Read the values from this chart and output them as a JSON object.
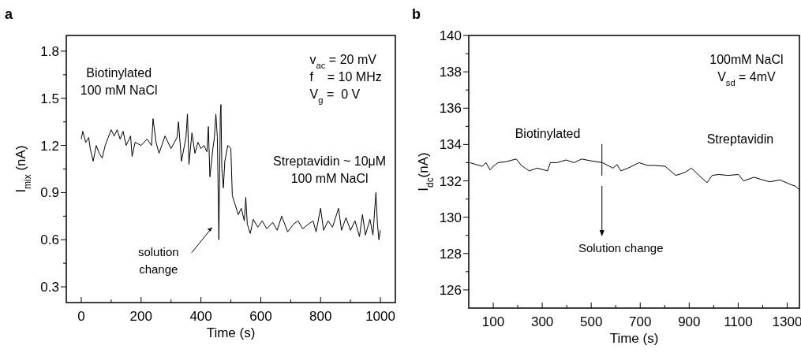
{
  "chart_data": [
    {
      "type": "line",
      "title": "a",
      "xlabel": "Time (s)",
      "ylabel": "I$_{mix}$ (nA)",
      "xlim": [
        -50,
        1050
      ],
      "ylim": [
        0.2,
        1.9
      ],
      "xticks": [
        0,
        {
          "value": 100,
          "label": null
        },
        200,
        {
          "value": 300,
          "label": null
        },
        400,
        {
          "value": 500,
          "label": null
        },
        600,
        {
          "value": 700,
          "label": null
        },
        800,
        {
          "value": 900,
          "label": null
        },
        1000
      ],
      "yticks": [
        0.3,
        {
          "value": 0.45,
          "label": null
        },
        0.6,
        {
          "value": 0.75,
          "label": null
        },
        0.9,
        {
          "value": 1.05,
          "label": null
        },
        1.2,
        {
          "value": 1.35,
          "label": null
        },
        1.5,
        {
          "value": 1.65,
          "label": null
        },
        1.8
      ],
      "annotations": [
        "Biotinylated\n100 mM NaCl",
        "v$_{ac}$ = 20 mV\nf    = 10 MHz\nV$_{g}$ =  0 V",
        "Streptavidin ~ 10μM\n100 mM NaCl",
        "solution\nchange"
      ],
      "series": [
        {
          "color": "#000000",
          "x": [
            0,
            5,
            15,
            25,
            30,
            40,
            50,
            60,
            70,
            80,
            90,
            100,
            110,
            120,
            130,
            140,
            150,
            165,
            170,
            180,
            200,
            220,
            235,
            240,
            250,
            260,
            280,
            300,
            320,
            325,
            335,
            350,
            355,
            360,
            370,
            380,
            390,
            400,
            410,
            420,
            425,
            430,
            440,
            445,
            450,
            455,
            460,
            465,
            467,
            470,
            475,
            480,
            490,
            500,
            505,
            515,
            525,
            535,
            545,
            550,
            555,
            565,
            575,
            590,
            605,
            620,
            640,
            655,
            670,
            690,
            710,
            725,
            740,
            760,
            775,
            785,
            800,
            810,
            825,
            840,
            860,
            870,
            885,
            900,
            915,
            930,
            940,
            950,
            965,
            975,
            985,
            990,
            995,
            1000
          ],
          "values": [
            1.24,
            1.29,
            1.22,
            1.25,
            1.18,
            1.1,
            1.2,
            1.15,
            1.12,
            1.2,
            1.25,
            1.3,
            1.26,
            1.3,
            1.24,
            1.29,
            1.2,
            1.26,
            1.13,
            1.22,
            1.2,
            1.24,
            1.2,
            1.37,
            1.22,
            1.15,
            1.26,
            1.18,
            1.25,
            1.35,
            1.1,
            1.25,
            1.4,
            1.08,
            1.28,
            1.15,
            1.22,
            1.18,
            1.2,
            1.16,
            1.32,
            1.0,
            1.18,
            1.25,
            1.4,
            1.25,
            0.6,
            1.4,
            1.46,
            1.05,
            0.93,
            1.1,
            1.2,
            1.18,
            0.88,
            0.82,
            0.76,
            0.8,
            0.72,
            0.87,
            0.7,
            0.64,
            0.73,
            0.68,
            0.72,
            0.67,
            0.71,
            0.66,
            0.75,
            0.65,
            0.7,
            0.72,
            0.67,
            0.7,
            0.72,
            0.65,
            0.8,
            0.66,
            0.72,
            0.68,
            0.8,
            0.66,
            0.74,
            0.66,
            0.72,
            0.62,
            0.76,
            0.63,
            0.73,
            0.63,
            0.9,
            0.7,
            0.6,
            0.66
          ]
        }
      ]
    },
    {
      "type": "line",
      "title": "b",
      "xlabel": "Time (s)",
      "ylabel": "I$_{dc}$(nA)",
      "xlim": [
        0,
        1350
      ],
      "ylim": [
        125,
        140
      ],
      "xticks": [
        100,
        {
          "value": 200,
          "label": null
        },
        300,
        {
          "value": 400,
          "label": null
        },
        500,
        {
          "value": 600,
          "label": null
        },
        700,
        {
          "value": 800,
          "label": null
        },
        900,
        {
          "value": 1000,
          "label": null
        },
        1100,
        {
          "value": 1200,
          "label": null
        },
        1300
      ],
      "yticks": [
        126,
        {
          "value": 127,
          "label": null
        },
        128,
        {
          "value": 129,
          "label": null
        },
        130,
        {
          "value": 131,
          "label": null
        },
        132,
        {
          "value": 133,
          "label": null
        },
        134,
        {
          "value": 135,
          "label": null
        },
        136,
        {
          "value": 137,
          "label": null
        },
        138,
        {
          "value": 139,
          "label": null
        },
        140
      ],
      "annotations": [
        "100mM NaCl\nV$_{sd}$ = 4mV",
        "Biotinylated",
        "Streptavidin",
        "Solution change"
      ],
      "series": [
        {
          "color": "#000000",
          "x": [
            5,
            30,
            55,
            70,
            87,
            100,
            119,
            150,
            194,
            215,
            230,
            247,
            280,
            322,
            333,
            360,
            397,
            430,
            461,
            500,
            546,
            589,
            605,
            621,
            650,
            695,
            730,
            759,
            802,
            845,
            870,
            887,
            909,
            940,
            973,
            994,
            1020,
            1058,
            1101,
            1122,
            1165,
            1200,
            1229,
            1271,
            1314,
            1335,
            1350
          ],
          "values": [
            133.0,
            132.9,
            132.8,
            133.0,
            132.6,
            132.8,
            133.0,
            133.05,
            133.2,
            132.85,
            132.7,
            132.55,
            132.7,
            132.55,
            133.0,
            133.0,
            133.15,
            133.0,
            133.2,
            133.1,
            133.0,
            132.7,
            132.9,
            132.55,
            132.7,
            133.0,
            132.85,
            132.85,
            132.8,
            132.3,
            132.4,
            132.5,
            132.7,
            132.3,
            131.9,
            132.3,
            132.35,
            132.3,
            132.35,
            132.0,
            132.2,
            132.05,
            131.95,
            132.05,
            131.8,
            131.7,
            131.5
          ]
        }
      ]
    }
  ]
}
